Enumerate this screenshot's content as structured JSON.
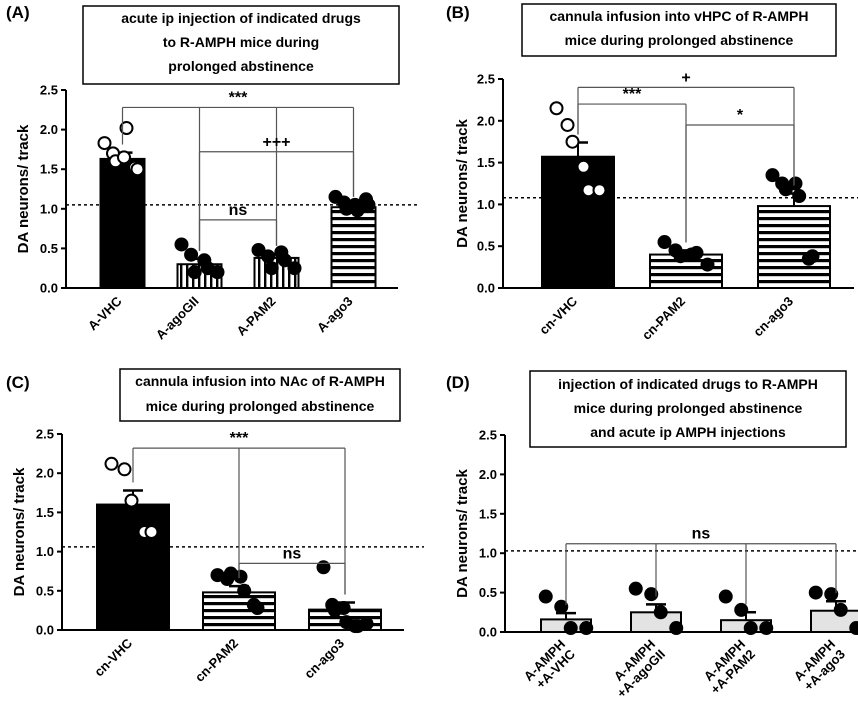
{
  "chart_data": [
    {
      "panel": "(A)",
      "type": "bar",
      "title_lines": [
        "acute ip injection of indicated drugs",
        "to R-AMPH mice during",
        "prolonged abstinence"
      ],
      "ylabel": "DA neurons/ track",
      "ylim": [
        0,
        2.5
      ],
      "yticks": [
        "0.0",
        "0.5",
        "1.0",
        "1.5",
        "2.0",
        "2.5"
      ],
      "reference_line": 1.05,
      "categories": [
        "A-VHC",
        "A-agoGII",
        "A-PAM2",
        "A-ago3"
      ],
      "bars": [
        {
          "name": "A-VHC",
          "mean": 1.63,
          "sem": 0.08,
          "fill": "solid",
          "points": [
            1.83,
            1.7,
            1.6,
            1.65,
            2.02,
            1.52,
            1.5
          ],
          "point_style": "open"
        },
        {
          "name": "A-agoGII",
          "mean": 0.3,
          "sem": 0.07,
          "fill": "vstripe",
          "points": [
            0.55,
            0.42,
            0.2,
            0.35,
            0.25,
            0.2
          ],
          "point_style": "filled"
        },
        {
          "name": "A-PAM2",
          "mean": 0.38,
          "sem": 0.05,
          "fill": "vstripe",
          "points": [
            0.48,
            0.4,
            0.25,
            0.45,
            0.35,
            0.25
          ],
          "point_style": "filled"
        },
        {
          "name": "A-ago3",
          "mean": 1.02,
          "sem": 0.03,
          "fill": "hstripe",
          "points": [
            1.15,
            1.08,
            1.0,
            1.05,
            0.98,
            1.12,
            1.05
          ],
          "point_style": "filled"
        }
      ],
      "annotations": [
        {
          "text": "***",
          "from": 0,
          "to": [
            1,
            2,
            3
          ],
          "level": 2.28
        },
        {
          "text": "+++",
          "from": 1,
          "to": [
            3
          ],
          "level": 1.72
        },
        {
          "text": "ns",
          "from": 1,
          "to": [
            2
          ],
          "level": 0.86
        }
      ]
    },
    {
      "panel": "(B)",
      "type": "bar",
      "title_lines": [
        "cannula infusion into vHPC of R-AMPH",
        "mice during prolonged abstinence"
      ],
      "ylabel": "DA neurons/ track",
      "ylim": [
        0,
        2.5
      ],
      "yticks": [
        "0.0",
        "0.5",
        "1.0",
        "1.5",
        "2.0",
        "2.5"
      ],
      "reference_line": 1.08,
      "categories": [
        "cn-VHC",
        "cn-PAM2",
        "cn-ago3"
      ],
      "bars": [
        {
          "name": "cn-VHC",
          "mean": 1.57,
          "sem": 0.17,
          "fill": "solid",
          "points": [
            2.15,
            1.95,
            1.75,
            1.45,
            1.17,
            1.17
          ],
          "point_style": "open"
        },
        {
          "name": "cn-PAM2",
          "mean": 0.4,
          "sem": 0.05,
          "fill": "hstripe",
          "points": [
            0.55,
            0.45,
            0.38,
            0.4,
            0.42,
            0.28
          ],
          "point_style": "filled"
        },
        {
          "name": "cn-ago3",
          "mean": 0.98,
          "sem": 0.15,
          "fill": "hstripe",
          "points": [
            1.35,
            1.25,
            1.18,
            1.25,
            1.1,
            0.35,
            0.38
          ],
          "point_style": "filled"
        }
      ],
      "annotations": [
        {
          "text": "+",
          "from": 0,
          "to": [
            2
          ],
          "level": 2.4
        },
        {
          "text": "***",
          "from": 0,
          "to": [
            1
          ],
          "level": 2.2
        },
        {
          "text": "*",
          "from": 1,
          "to": [
            2
          ],
          "level": 1.95
        }
      ]
    },
    {
      "panel": "(C)",
      "type": "bar",
      "title_lines": [
        "cannula infusion into NAc of R-AMPH",
        "mice during prolonged abstinence"
      ],
      "ylabel": "DA neurons/ track",
      "ylim": [
        0,
        2.5
      ],
      "yticks": [
        "0.0",
        "0.5",
        "1.0",
        "1.5",
        "2.0",
        "2.5"
      ],
      "reference_line": 1.06,
      "categories": [
        "cn-VHC",
        "cn-PAM2",
        "cn-ago3"
      ],
      "bars": [
        {
          "name": "cn-VHC",
          "mean": 1.6,
          "sem": 0.18,
          "fill": "solid",
          "points": [
            2.12,
            2.05,
            1.65,
            1.25,
            1.25
          ],
          "point_style": "open"
        },
        {
          "name": "cn-PAM2",
          "mean": 0.48,
          "sem": 0.08,
          "fill": "hstripe",
          "points": [
            0.7,
            0.65,
            0.72,
            0.68,
            0.5,
            0.32,
            0.28
          ],
          "point_style": "filled"
        },
        {
          "name": "cn-ago3",
          "mean": 0.26,
          "sem": 0.09,
          "fill": "hstripe",
          "points": [
            0.8,
            0.32,
            0.25,
            0.28,
            0.1,
            0.05,
            0.05,
            0.08
          ],
          "point_style": "filled"
        }
      ],
      "annotations": [
        {
          "text": "***",
          "from": 0,
          "to": [
            1,
            2
          ],
          "level": 2.32
        },
        {
          "text": "ns",
          "from": 1,
          "to": [
            2
          ],
          "level": 0.85
        }
      ]
    },
    {
      "panel": "(D)",
      "type": "bar",
      "title_lines": [
        "injection of indicated drugs to R-AMPH",
        "mice during prolonged abstinence",
        "and acute ip AMPH injections"
      ],
      "ylabel": "DA neurons/ track",
      "ylim": [
        0,
        2.5
      ],
      "yticks": [
        "0.0",
        "0.5",
        "1.0",
        "1.5",
        "2.0",
        "2.5"
      ],
      "reference_line": 1.03,
      "categories": [
        "A-AMPH\n+A-VHC",
        "A-AMPH\n+A-agoGII",
        "A-AMPH\n+A-PAM2",
        "A-AMPH\n+A-ago3"
      ],
      "bars": [
        {
          "name": "A-AMPH +A-VHC",
          "mean": 0.16,
          "sem": 0.08,
          "fill": "light",
          "points": [
            0.45,
            0.32,
            0.05,
            0.05
          ],
          "point_style": "filled"
        },
        {
          "name": "A-AMPH +A-agoGII",
          "mean": 0.25,
          "sem": 0.1,
          "fill": "light",
          "points": [
            0.55,
            0.48,
            0.25,
            0.05
          ],
          "point_style": "filled"
        },
        {
          "name": "A-AMPH +A-PAM2",
          "mean": 0.15,
          "sem": 0.1,
          "fill": "light",
          "points": [
            0.45,
            0.28,
            0.05,
            0.05
          ],
          "point_style": "filled"
        },
        {
          "name": "A-AMPH +A-ago3",
          "mean": 0.27,
          "sem": 0.12,
          "fill": "light",
          "points": [
            0.5,
            0.48,
            0.28,
            0.05
          ],
          "point_style": "filled"
        }
      ],
      "annotations": [
        {
          "text": "ns",
          "from": 0,
          "to": [
            1,
            2,
            3
          ],
          "level": 1.12
        }
      ]
    }
  ]
}
